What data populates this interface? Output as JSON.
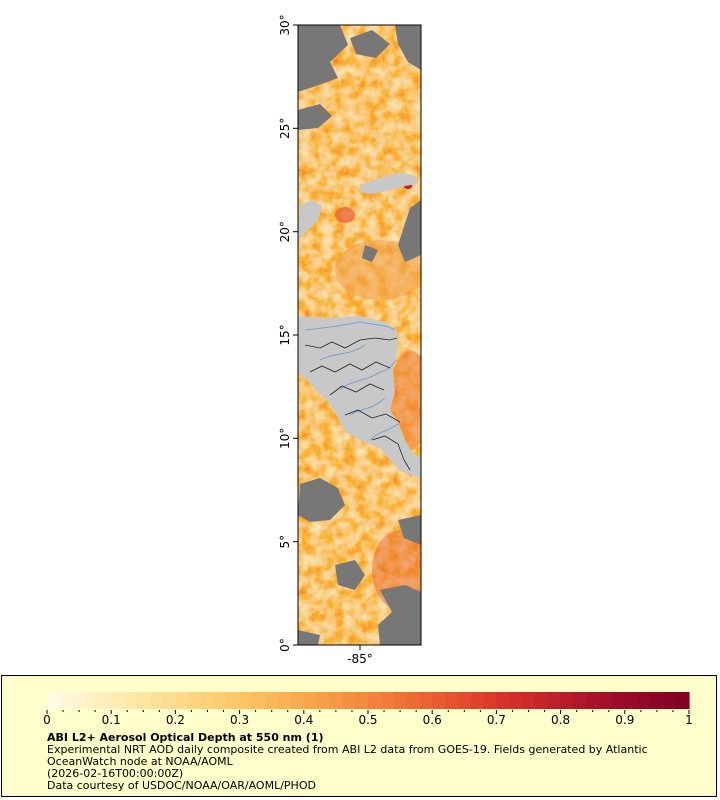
{
  "map": {
    "lat_range": [
      0,
      30
    ],
    "lat_ticks": [
      {
        "value": 0,
        "label": "0°"
      },
      {
        "value": 5,
        "label": "5°"
      },
      {
        "value": 10,
        "label": "10°"
      },
      {
        "value": 15,
        "label": "15°"
      },
      {
        "value": 20,
        "label": "20°"
      },
      {
        "value": 25,
        "label": "25°"
      },
      {
        "value": 30,
        "label": "30°"
      }
    ],
    "lon_ticks": [
      {
        "value": -85,
        "label": "-85°"
      }
    ],
    "colors": {
      "no_data": "#777777",
      "land": "#c8c8c8",
      "rivers": "#6a9ad0",
      "borders": "#222222"
    }
  },
  "legend": {
    "min": 0,
    "max": 1,
    "ticks": [
      {
        "value": 0,
        "label": "0"
      },
      {
        "value": 0.1,
        "label": "0.1"
      },
      {
        "value": 0.2,
        "label": "0.2"
      },
      {
        "value": 0.3,
        "label": "0.3"
      },
      {
        "value": 0.4,
        "label": "0.4"
      },
      {
        "value": 0.5,
        "label": "0.5"
      },
      {
        "value": 0.6,
        "label": "0.6"
      },
      {
        "value": 0.7,
        "label": "0.7"
      },
      {
        "value": 0.8,
        "label": "0.8"
      },
      {
        "value": 0.9,
        "label": "0.9"
      },
      {
        "value": 1,
        "label": "1"
      }
    ],
    "color_stops": [
      "#fffbe6",
      "#fde7a4",
      "#fdc96a",
      "#f9a047",
      "#f06a33",
      "#d9302a",
      "#a8102a",
      "#7f0024"
    ],
    "title": "ABI L2+ Aerosol Optical Depth at 550 nm (1)",
    "lines": [
      "Experimental NRT AOD daily composite created from ABI L2 data from GOES-19. Fields generated by Atlantic",
      "OceanWatch node at NOAA/AOML",
      "(2026-02-16T00:00:00Z)",
      "Data courtesy of USDOC/NOAA/OAR/AOML/PHOD"
    ]
  }
}
